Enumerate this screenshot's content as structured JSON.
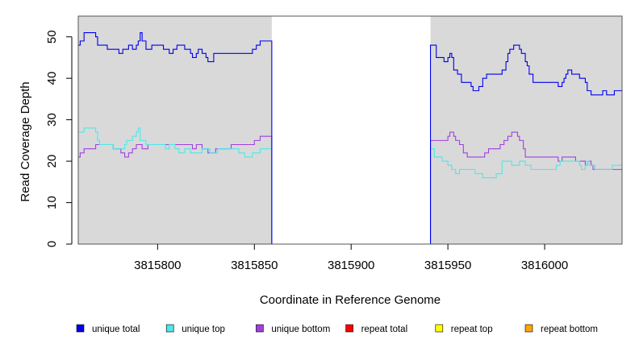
{
  "chart_data": {
    "type": "line",
    "title": "",
    "xlabel": "Coordinate in Reference Genome",
    "ylabel": "Read Coverage Depth",
    "xlim": [
      3815759,
      3816040
    ],
    "ylim": [
      0,
      55
    ],
    "xticks": [
      3815800,
      3815850,
      3815900,
      3815950,
      3816000
    ],
    "yticks": [
      0,
      10,
      20,
      30,
      40,
      50
    ],
    "shaded_regions": [
      [
        3815759,
        3815859
      ],
      [
        3815941,
        3816040
      ]
    ],
    "shade_color": "#d9d9d9",
    "grid": false,
    "legend_position": "bottom",
    "series": [
      {
        "name": "unique total",
        "color": "#0000ee",
        "points": [
          [
            3815759,
            48
          ],
          [
            3815760,
            49
          ],
          [
            3815762,
            51
          ],
          [
            3815768,
            50
          ],
          [
            3815769,
            48
          ],
          [
            3815774,
            47
          ],
          [
            3815780,
            46
          ],
          [
            3815782,
            47
          ],
          [
            3815785,
            48
          ],
          [
            3815787,
            47
          ],
          [
            3815789,
            48
          ],
          [
            3815790,
            49
          ],
          [
            3815791,
            51
          ],
          [
            3815792,
            49
          ],
          [
            3815794,
            47
          ],
          [
            3815797,
            48
          ],
          [
            3815803,
            47
          ],
          [
            3815806,
            46
          ],
          [
            3815808,
            47
          ],
          [
            3815810,
            48
          ],
          [
            3815814,
            47
          ],
          [
            3815817,
            46
          ],
          [
            3815818,
            45
          ],
          [
            3815820,
            46
          ],
          [
            3815821,
            47
          ],
          [
            3815823,
            46
          ],
          [
            3815825,
            45
          ],
          [
            3815826,
            44
          ],
          [
            3815829,
            46
          ],
          [
            3815838,
            46
          ],
          [
            3815849,
            47
          ],
          [
            3815851,
            48
          ],
          [
            3815852,
            48
          ],
          [
            3815853,
            49
          ],
          [
            3815859,
            0
          ],
          [
            3815941,
            48
          ],
          [
            3815944,
            45
          ],
          [
            3815948,
            44
          ],
          [
            3815950,
            45
          ],
          [
            3815951,
            46
          ],
          [
            3815952,
            45
          ],
          [
            3815953,
            42
          ],
          [
            3815955,
            41
          ],
          [
            3815957,
            39
          ],
          [
            3815962,
            38
          ],
          [
            3815963,
            37
          ],
          [
            3815966,
            38
          ],
          [
            3815968,
            40
          ],
          [
            3815970,
            41
          ],
          [
            3815975,
            41
          ],
          [
            3815978,
            42
          ],
          [
            3815980,
            44
          ],
          [
            3815981,
            46
          ],
          [
            3815982,
            47
          ],
          [
            3815984,
            48
          ],
          [
            3815987,
            47
          ],
          [
            3815988,
            46
          ],
          [
            3815990,
            44
          ],
          [
            3815991,
            43
          ],
          [
            3815992,
            41
          ],
          [
            3815994,
            39
          ],
          [
            3815998,
            39
          ],
          [
            3816007,
            38
          ],
          [
            3816009,
            39
          ],
          [
            3816010,
            40
          ],
          [
            3816011,
            41
          ],
          [
            3816012,
            42
          ],
          [
            3816014,
            41
          ],
          [
            3816018,
            40
          ],
          [
            3816021,
            39
          ],
          [
            3816022,
            37
          ],
          [
            3816024,
            36
          ],
          [
            3816030,
            37
          ],
          [
            3816032,
            36
          ],
          [
            3816036,
            37
          ],
          [
            3816040,
            37
          ]
        ]
      },
      {
        "name": "unique top",
        "color": "#4de8e8",
        "points": [
          [
            3815759,
            27
          ],
          [
            3815760,
            27
          ],
          [
            3815762,
            28
          ],
          [
            3815768,
            27
          ],
          [
            3815769,
            25
          ],
          [
            3815770,
            24
          ],
          [
            3815777,
            23
          ],
          [
            3815783,
            24
          ],
          [
            3815784,
            25
          ],
          [
            3815787,
            26
          ],
          [
            3815789,
            27
          ],
          [
            3815790,
            28
          ],
          [
            3815791,
            25
          ],
          [
            3815794,
            24
          ],
          [
            3815804,
            23
          ],
          [
            3815806,
            24
          ],
          [
            3815809,
            23
          ],
          [
            3815811,
            22
          ],
          [
            3815814,
            23
          ],
          [
            3815817,
            22
          ],
          [
            3815823,
            23
          ],
          [
            3815827,
            22
          ],
          [
            3815831,
            23
          ],
          [
            3815837,
            23
          ],
          [
            3815842,
            22
          ],
          [
            3815845,
            21
          ],
          [
            3815849,
            22
          ],
          [
            3815853,
            23
          ],
          [
            3815859,
            0
          ],
          [
            3815941,
            23
          ],
          [
            3815943,
            21
          ],
          [
            3815947,
            20
          ],
          [
            3815950,
            19
          ],
          [
            3815952,
            18
          ],
          [
            3815954,
            17
          ],
          [
            3815956,
            18
          ],
          [
            3815963,
            18
          ],
          [
            3815964,
            17
          ],
          [
            3815968,
            16
          ],
          [
            3815975,
            17
          ],
          [
            3815978,
            20
          ],
          [
            3815983,
            19
          ],
          [
            3815987,
            20
          ],
          [
            3815990,
            19
          ],
          [
            3815993,
            18
          ],
          [
            3816006,
            19
          ],
          [
            3816008,
            20
          ],
          [
            3816018,
            19
          ],
          [
            3816019,
            18
          ],
          [
            3816021,
            19
          ],
          [
            3816022,
            20
          ],
          [
            3816023,
            19
          ],
          [
            3816026,
            18
          ],
          [
            3816035,
            19
          ],
          [
            3816040,
            19
          ]
        ]
      },
      {
        "name": "unique bottom",
        "color": "#a040e0",
        "points": [
          [
            3815759,
            21
          ],
          [
            3815760,
            22
          ],
          [
            3815762,
            23
          ],
          [
            3815766,
            23
          ],
          [
            3815768,
            24
          ],
          [
            3815777,
            23
          ],
          [
            3815781,
            22
          ],
          [
            3815783,
            21
          ],
          [
            3815785,
            22
          ],
          [
            3815787,
            23
          ],
          [
            3815789,
            24
          ],
          [
            3815792,
            23
          ],
          [
            3815795,
            24
          ],
          [
            3815815,
            24
          ],
          [
            3815818,
            23
          ],
          [
            3815820,
            24
          ],
          [
            3815823,
            23
          ],
          [
            3815826,
            22
          ],
          [
            3815830,
            23
          ],
          [
            3815838,
            24
          ],
          [
            3815850,
            25
          ],
          [
            3815853,
            26
          ],
          [
            3815859,
            0
          ],
          [
            3815941,
            25
          ],
          [
            3815949,
            25
          ],
          [
            3815950,
            26
          ],
          [
            3815951,
            27
          ],
          [
            3815953,
            26
          ],
          [
            3815954,
            25
          ],
          [
            3815956,
            24
          ],
          [
            3815958,
            22
          ],
          [
            3815960,
            21
          ],
          [
            3815966,
            21
          ],
          [
            3815969,
            22
          ],
          [
            3815971,
            23
          ],
          [
            3815977,
            24
          ],
          [
            3815979,
            25
          ],
          [
            3815981,
            26
          ],
          [
            3815983,
            27
          ],
          [
            3815986,
            26
          ],
          [
            3815987,
            25
          ],
          [
            3815989,
            23
          ],
          [
            3815990,
            21
          ],
          [
            3815993,
            21
          ],
          [
            3816005,
            21
          ],
          [
            3816007,
            20
          ],
          [
            3816009,
            21
          ],
          [
            3816016,
            20
          ],
          [
            3816021,
            19
          ],
          [
            3816022,
            20
          ],
          [
            3816023,
            20
          ],
          [
            3816024,
            19
          ],
          [
            3816025,
            18
          ],
          [
            3816029,
            18
          ],
          [
            3816040,
            18
          ]
        ]
      },
      {
        "name": "repeat total",
        "color": "#ff0000",
        "points": [
          [
            3815759,
            0
          ],
          [
            3816040,
            0
          ]
        ]
      },
      {
        "name": "repeat top",
        "color": "#ffff00",
        "points": [
          [
            3815759,
            0
          ],
          [
            3816040,
            0
          ]
        ]
      },
      {
        "name": "repeat bottom",
        "color": "#ffa500",
        "points": [
          [
            3815759,
            0
          ],
          [
            3816040,
            0
          ]
        ]
      }
    ]
  }
}
